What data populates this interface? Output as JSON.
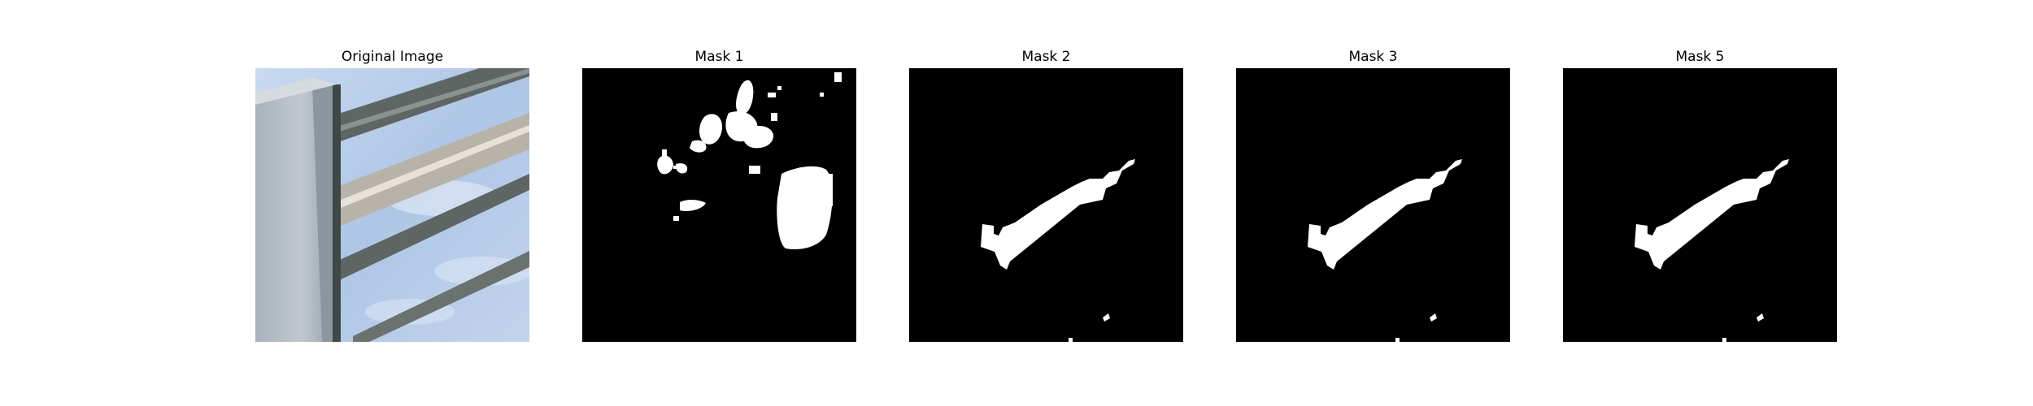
{
  "figure": {
    "panels": [
      {
        "title": "Original Image",
        "kind": "photo"
      },
      {
        "title": "Mask 1",
        "kind": "mask"
      },
      {
        "title": "Mask 2",
        "kind": "mask"
      },
      {
        "title": "Mask 3",
        "kind": "mask"
      },
      {
        "title": "Mask 5",
        "kind": "mask"
      }
    ],
    "colors": {
      "mask_background": "#000000",
      "mask_foreground": "#ffffff",
      "sky": "#b9cde8",
      "wall": "#b4bcc6",
      "frame": "#4a5350"
    }
  }
}
